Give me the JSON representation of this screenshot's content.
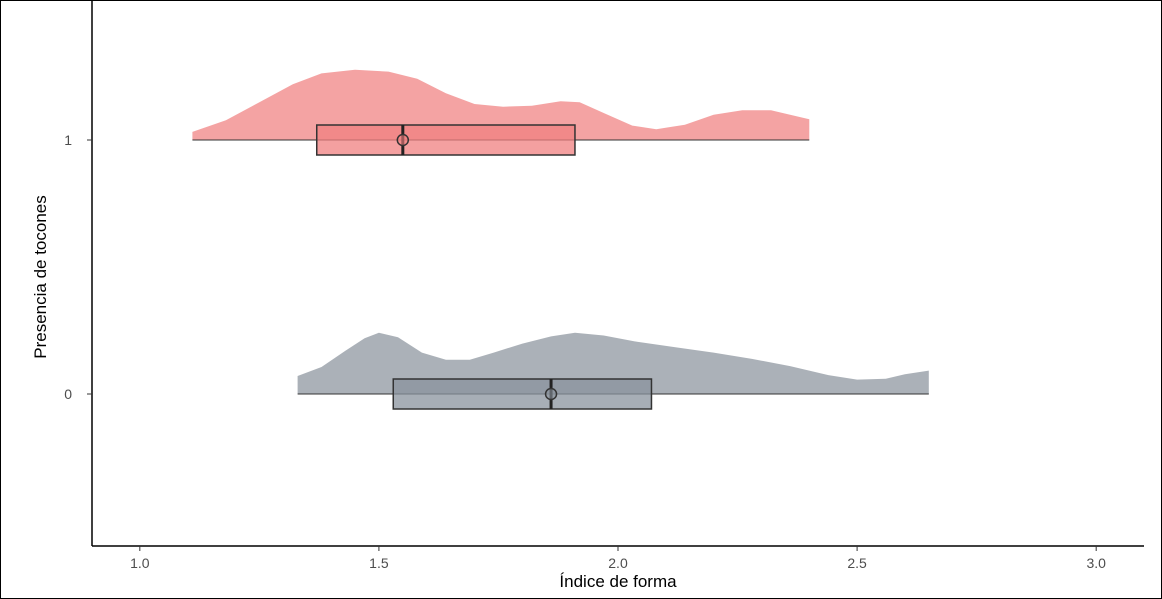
{
  "chart_data": {
    "type": "raincloud",
    "xlabel": "Índice de forma",
    "ylabel": "Presencia de tocones",
    "xlim": [
      0.9,
      3.1
    ],
    "x_ticks": [
      "1.0",
      "1.5",
      "2.0",
      "2.5",
      "3.0"
    ],
    "y_ticks": [
      "0",
      "1"
    ],
    "grid": false,
    "series": [
      {
        "category": "1",
        "color": "#f08080",
        "density": {
          "x_min": 1.11,
          "x_max": 2.4,
          "points": [
            [
              1.11,
              0.09
            ],
            [
              1.18,
              0.22
            ],
            [
              1.25,
              0.42
            ],
            [
              1.32,
              0.62
            ],
            [
              1.38,
              0.74
            ],
            [
              1.45,
              0.78
            ],
            [
              1.52,
              0.76
            ],
            [
              1.58,
              0.68
            ],
            [
              1.64,
              0.52
            ],
            [
              1.7,
              0.4
            ],
            [
              1.76,
              0.37
            ],
            [
              1.82,
              0.38
            ],
            [
              1.88,
              0.43
            ],
            [
              1.92,
              0.42
            ],
            [
              1.97,
              0.3
            ],
            [
              2.03,
              0.16
            ],
            [
              2.08,
              0.12
            ],
            [
              2.14,
              0.17
            ],
            [
              2.2,
              0.28
            ],
            [
              2.26,
              0.33
            ],
            [
              2.32,
              0.33
            ],
            [
              2.36,
              0.28
            ],
            [
              2.4,
              0.23
            ]
          ]
        },
        "box": {
          "q1": 1.37,
          "median": 1.55,
          "q3": 1.91
        },
        "mean": 1.55
      },
      {
        "category": "0",
        "color": "#8a939d",
        "density": {
          "x_min": 1.33,
          "x_max": 2.65,
          "points": [
            [
              1.33,
              0.2
            ],
            [
              1.38,
              0.3
            ],
            [
              1.43,
              0.48
            ],
            [
              1.47,
              0.62
            ],
            [
              1.5,
              0.68
            ],
            [
              1.54,
              0.63
            ],
            [
              1.59,
              0.46
            ],
            [
              1.64,
              0.38
            ],
            [
              1.69,
              0.38
            ],
            [
              1.74,
              0.46
            ],
            [
              1.8,
              0.56
            ],
            [
              1.86,
              0.64
            ],
            [
              1.91,
              0.68
            ],
            [
              1.97,
              0.65
            ],
            [
              2.04,
              0.58
            ],
            [
              2.12,
              0.52
            ],
            [
              2.2,
              0.46
            ],
            [
              2.28,
              0.39
            ],
            [
              2.36,
              0.31
            ],
            [
              2.44,
              0.21
            ],
            [
              2.5,
              0.16
            ],
            [
              2.56,
              0.17
            ],
            [
              2.6,
              0.22
            ],
            [
              2.65,
              0.26
            ]
          ]
        },
        "box": {
          "q1": 1.53,
          "median": 1.86,
          "q3": 2.07
        },
        "mean": 1.86
      }
    ]
  }
}
